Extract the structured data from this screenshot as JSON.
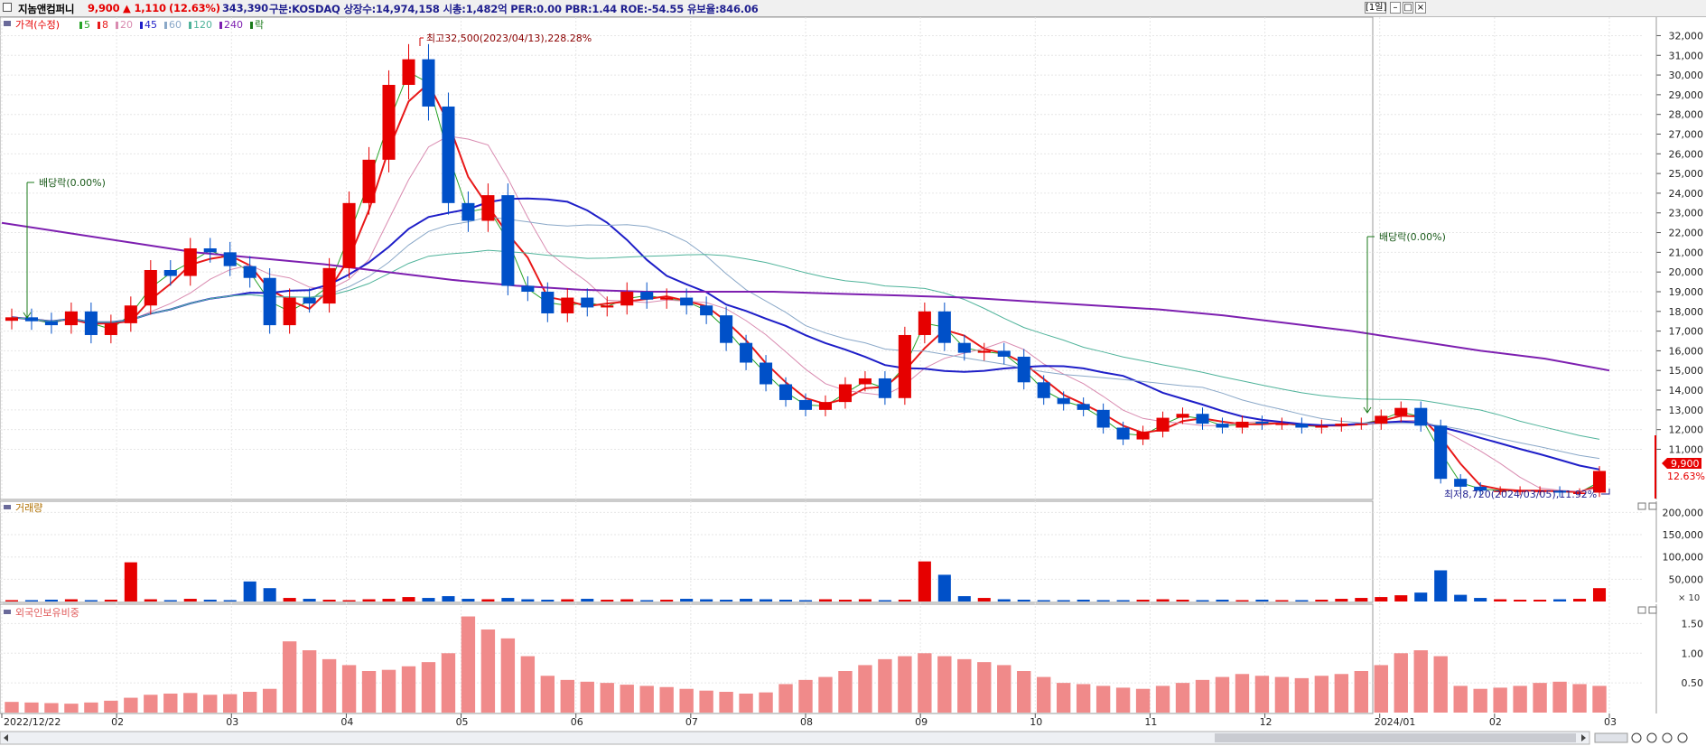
{
  "header": {
    "name": "지놈앤컴퍼니",
    "price": "9,900",
    "change": "▲ 1,110",
    "change_pct": "(12.63%)",
    "volume": "343,390",
    "info": "구분:KOSDAQ 상장수:14,974,158 시총:1,482억 PER:0.00 PBR:1.44 ROE:-54.55 유보율:846.06",
    "period_button": "[1일]",
    "colors": {
      "up": "#e60000",
      "down": "#0050c8",
      "label": "#1f1f8f"
    }
  },
  "legend": {
    "price": "가격(수정)",
    "ma": [
      {
        "label": "5",
        "color": "#27a327"
      },
      {
        "label": "8",
        "color": "#e81919"
      },
      {
        "label": "20",
        "color": "#d98bb0"
      },
      {
        "label": "45",
        "color": "#1e1ec8"
      },
      {
        "label": "60",
        "color": "#8aa8c8"
      },
      {
        "label": "120",
        "color": "#4fb39a"
      },
      {
        "label": "240",
        "color": "#7d1fb0"
      }
    ],
    "rak": "락"
  },
  "annotations": {
    "high": "최고32,500(2023/04/13),228.28%",
    "low": "최저8,720(2024/03/05),11.92%",
    "dividend1": "배당락(0.00%)",
    "dividend2": "배당락(0.00%)",
    "price_tag": "9,900",
    "pct_tag": "12.63%"
  },
  "panel_titles": {
    "volume": "거래량",
    "foreign": "외국인보유비중",
    "volume_unit": "× 10"
  },
  "chart_data": {
    "type": "candlestick",
    "x_labels": [
      "2022/12/22",
      "02",
      "03",
      "04",
      "05",
      "06",
      "07",
      "08",
      "09",
      "10",
      "11",
      "12",
      "2024/01",
      "02",
      "03"
    ],
    "price_axis": {
      "ylim": [
        8500,
        32800
      ],
      "ticks": [
        "32,000",
        "31,000",
        "30,000",
        "29,000",
        "28,000",
        "27,000",
        "26,000",
        "25,000",
        "24,000",
        "23,000",
        "22,000",
        "21,000",
        "20,000",
        "19,000",
        "18,000",
        "17,000",
        "16,000",
        "15,000",
        "14,000",
        "13,000",
        "12,000",
        "11,000"
      ],
      "tick_values": [
        32000,
        31000,
        30000,
        29000,
        28000,
        27000,
        26000,
        25000,
        24000,
        23000,
        22000,
        21000,
        20000,
        19000,
        18000,
        17000,
        16000,
        15000,
        14000,
        13000,
        12000,
        11000
      ]
    },
    "price_close": [
      17700,
      17500,
      17300,
      18000,
      16800,
      17400,
      18300,
      20100,
      19800,
      21200,
      21000,
      20300,
      19700,
      17300,
      18700,
      18400,
      20200,
      23500,
      25700,
      29500,
      30800,
      28400,
      23500,
      22600,
      23900,
      19300,
      19000,
      17900,
      18700,
      18200,
      18300,
      19000,
      18600,
      18700,
      18300,
      17800,
      16400,
      15400,
      14300,
      13500,
      13000,
      13400,
      14300,
      14600,
      13600,
      16800,
      18000,
      16400,
      15900,
      16000,
      15700,
      14400,
      13600,
      13300,
      13000,
      12100,
      11500,
      11900,
      12600,
      12800,
      12300,
      12100,
      12400,
      12300,
      12300,
      12100,
      12200,
      12300,
      12300,
      12700,
      13100,
      12200,
      9500,
      9100,
      8900,
      8900,
      8900,
      8900,
      8800,
      8800,
      9900
    ],
    "ma240": [
      22500,
      22000,
      21500,
      21000,
      20700,
      20400,
      20000,
      19600,
      19300,
      19100,
      19000,
      19000,
      19000,
      18900,
      18800,
      18700,
      18500,
      18300,
      18100,
      17800,
      17400,
      17000,
      16500,
      16000,
      15600,
      15000
    ],
    "volume_axis": {
      "ticks": [
        "200,000",
        "150,000",
        "100,000",
        "50,000"
      ],
      "tick_values": [
        200000,
        150000,
        100000,
        50000
      ],
      "ylim": [
        0,
        215000
      ]
    },
    "volume": [
      3000,
      3000,
      4000,
      5000,
      3000,
      4000,
      88000,
      5000,
      3000,
      6000,
      4000,
      3000,
      45000,
      30000,
      8000,
      6000,
      4000,
      3000,
      5000,
      6000,
      10000,
      8000,
      12000,
      6000,
      5000,
      8000,
      5000,
      4000,
      5000,
      6000,
      4000,
      5000,
      3000,
      4000,
      6000,
      5000,
      4000,
      6000,
      5000,
      4000,
      3000,
      5000,
      4000,
      5000,
      3000,
      4000,
      90000,
      60000,
      12000,
      8000,
      5000,
      4000,
      3000,
      3000,
      4000,
      3000,
      3000,
      4000,
      5000,
      4000,
      3000,
      4000,
      3000,
      4000,
      3000,
      3000,
      4000,
      6000,
      8000,
      10000,
      14000,
      20000,
      70000,
      15000,
      8000,
      5000,
      4000,
      4000,
      5000,
      6000,
      30000
    ],
    "foreign_axis": {
      "ticks": [
        "1.50",
        "1.00",
        "0.50"
      ],
      "tick_values": [
        1.5,
        1.0,
        0.5
      ],
      "ylim": [
        0,
        1.75
      ]
    },
    "foreign_holding": [
      0.18,
      0.17,
      0.16,
      0.15,
      0.17,
      0.2,
      0.25,
      0.3,
      0.32,
      0.33,
      0.3,
      0.31,
      0.35,
      0.4,
      1.2,
      1.05,
      0.9,
      0.8,
      0.7,
      0.72,
      0.78,
      0.85,
      1.0,
      1.62,
      1.4,
      1.25,
      0.95,
      0.62,
      0.55,
      0.52,
      0.5,
      0.47,
      0.45,
      0.43,
      0.4,
      0.37,
      0.35,
      0.32,
      0.34,
      0.48,
      0.55,
      0.6,
      0.7,
      0.8,
      0.9,
      0.95,
      1.0,
      0.95,
      0.9,
      0.85,
      0.8,
      0.7,
      0.6,
      0.5,
      0.48,
      0.45,
      0.42,
      0.4,
      0.45,
      0.5,
      0.55,
      0.6,
      0.65,
      0.62,
      0.6,
      0.58,
      0.62,
      0.65,
      0.7,
      0.8,
      1.0,
      1.05,
      0.95,
      0.45,
      0.4,
      0.42,
      0.45,
      0.5,
      0.52,
      0.48,
      0.45
    ]
  }
}
